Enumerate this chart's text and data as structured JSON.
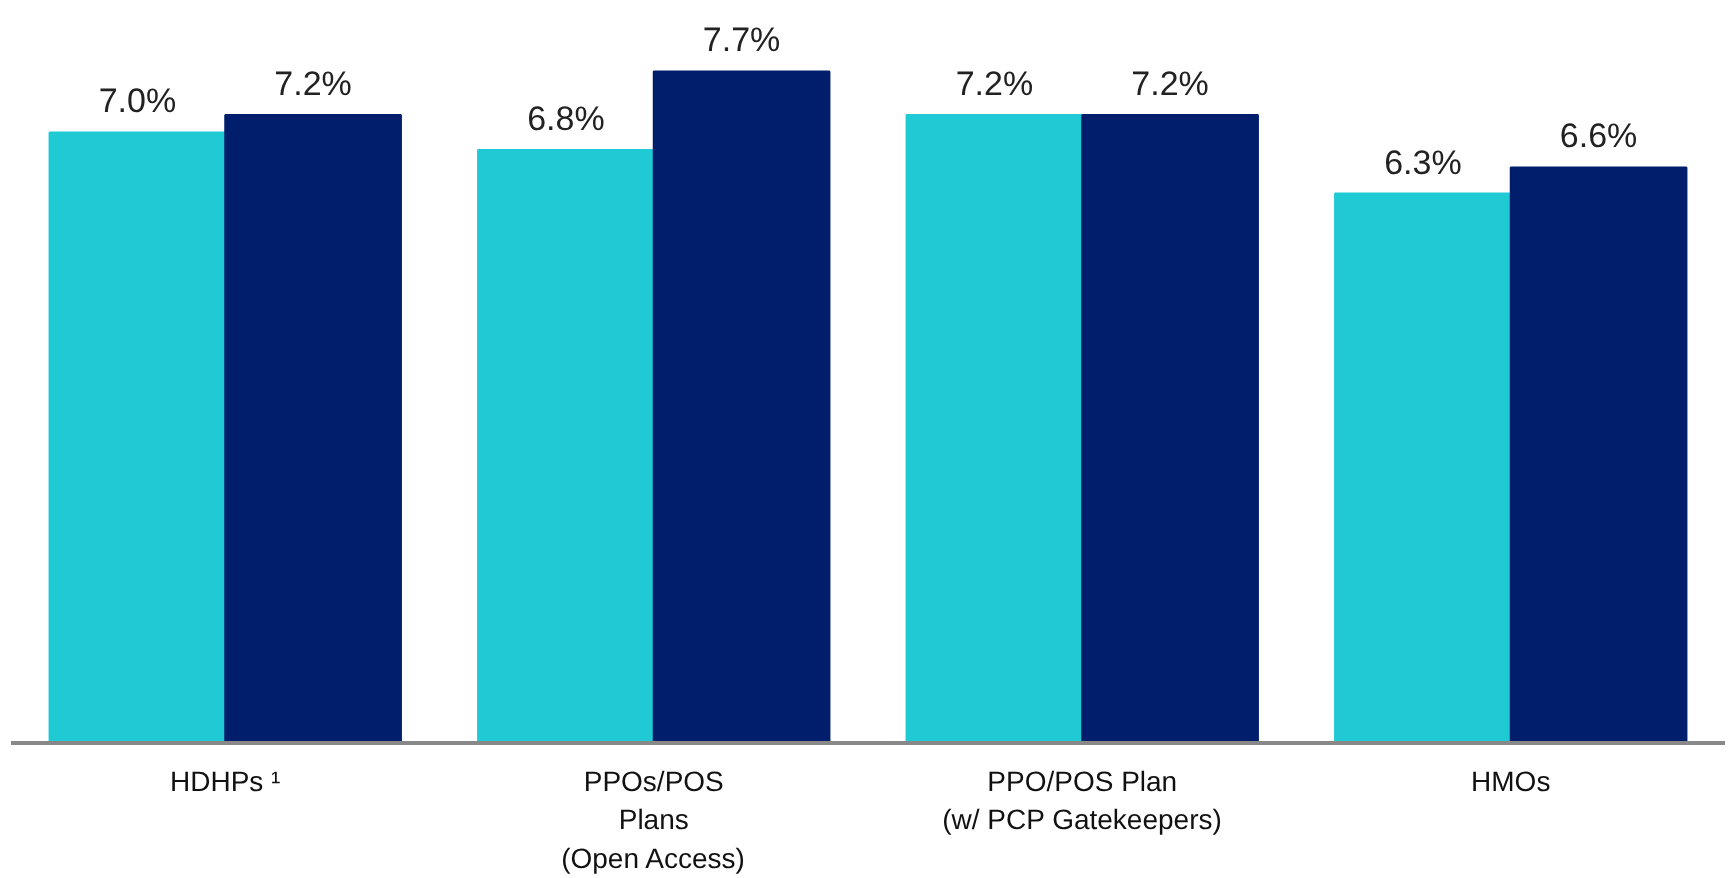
{
  "chart_data": {
    "type": "bar",
    "categories": [
      "HDHPs ¹",
      "PPOs/POS\nPlans\n(Open Access)",
      "PPO/POS Plan\n(w/ PCP Gatekeepers)",
      "HMOs"
    ],
    "series": [
      {
        "color": "#1fcad4",
        "values": [
          7.0,
          6.8,
          7.2,
          6.3
        ],
        "value_labels": [
          "7.0%",
          "6.8%",
          "7.2%",
          "6.3%"
        ]
      },
      {
        "color": "#001e6c",
        "values": [
          7.2,
          7.7,
          7.2,
          6.6
        ],
        "value_labels": [
          "7.2%",
          "7.7%",
          "7.2%",
          "6.6%"
        ]
      }
    ]
  }
}
